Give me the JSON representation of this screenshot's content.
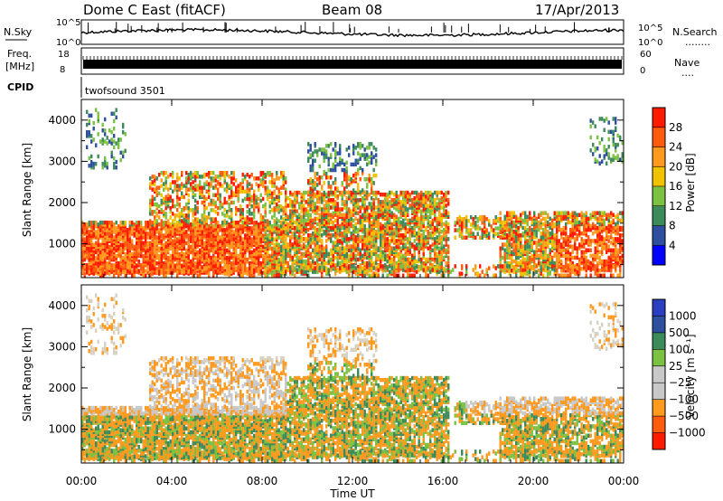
{
  "header": {
    "station": "Dome C East (fitACF)",
    "beam": "Beam 08",
    "date": "17/Apr/2013"
  },
  "noise_panel": {
    "left_label": "N.Sky",
    "left_ticks": [
      "10^5",
      "10^0"
    ],
    "right_ticks": [
      "10^5",
      "10^0"
    ],
    "right_label": "N.Search",
    "right_dots": "........"
  },
  "freq_panel": {
    "left_label_1": "Freq.",
    "left_label_2": "[MHz]",
    "left_ticks": [
      "18",
      "8"
    ],
    "right_ticks": [
      "60",
      "0"
    ],
    "right_label": "Nave",
    "right_dots": "...."
  },
  "cpid_panel": {
    "label": "CPID",
    "program": "twofsound 3501"
  },
  "colors": {
    "power": [
      "#0000ff",
      "#2e4fa0",
      "#3d8a5b",
      "#7bc142",
      "#f0c200",
      "#ff9a1f",
      "#ff5c10",
      "#ff1a00"
    ],
    "velocity": [
      "#ff1a00",
      "#ff5c10",
      "#ff9a1f",
      "#c8c8c8",
      "#c8c8c8",
      "#7bc142",
      "#3d8a5b",
      "#2e4fa0",
      "#2a3ec0"
    ]
  },
  "chart_data": [
    {
      "type": "heatmap",
      "ylabel": "Slant Range [km]",
      "y_ticks": [
        1000,
        2000,
        3000,
        4000
      ],
      "ylim": [
        180,
        4500
      ],
      "colorbar_label": "Power [dB]",
      "colorbar_ticks": [
        4,
        8,
        12,
        16,
        20,
        24,
        28
      ]
    },
    {
      "type": "heatmap",
      "ylabel": "Slant Range [km]",
      "y_ticks": [
        1000,
        2000,
        3000,
        4000
      ],
      "ylim": [
        180,
        4500
      ],
      "xlabel": "Time UT",
      "x_ticks": [
        "00:00",
        "04:00",
        "08:00",
        "12:00",
        "16:00",
        "20:00",
        "00:00"
      ],
      "xlim_hours": [
        0,
        24
      ],
      "colorbar_label": "Velocity [m s⁻¹]",
      "colorbar_ticks": [
        "1000",
        "500",
        "100",
        "25",
        "−25",
        "−100",
        "−500",
        "−1000"
      ]
    }
  ]
}
